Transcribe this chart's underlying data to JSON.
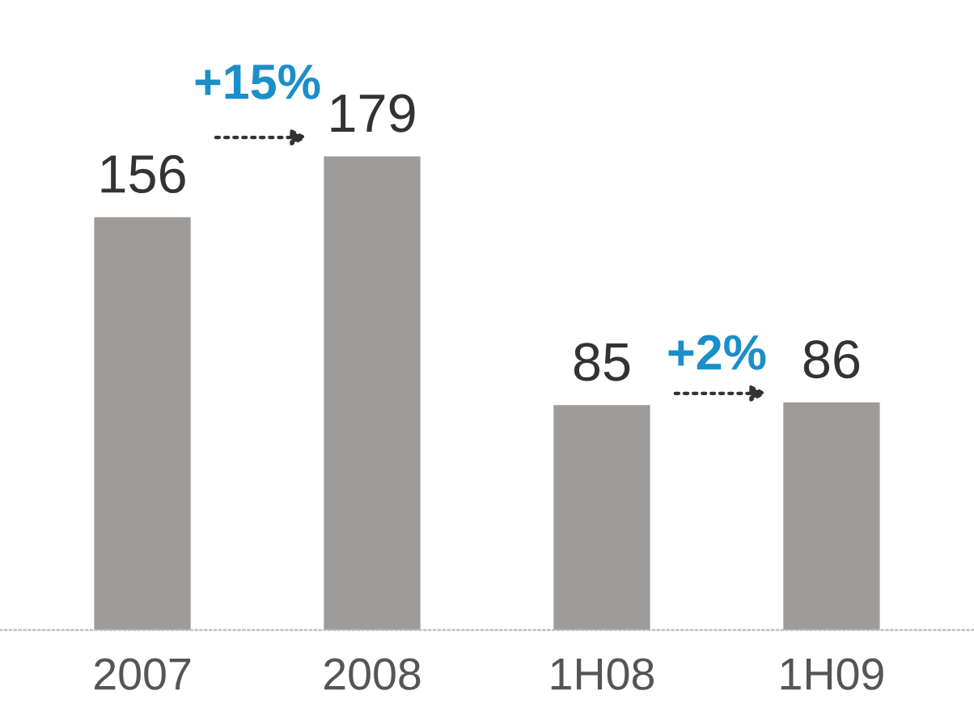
{
  "chart_data": {
    "type": "bar",
    "categories": [
      "2007",
      "2008",
      "1H08",
      "1H09"
    ],
    "values": [
      156,
      179,
      85,
      86
    ],
    "color": "#9e9b9b",
    "data_labels": true,
    "annotations": [
      "+15%",
      "+2%"
    ],
    "grid": false,
    "legend": false
  }
}
